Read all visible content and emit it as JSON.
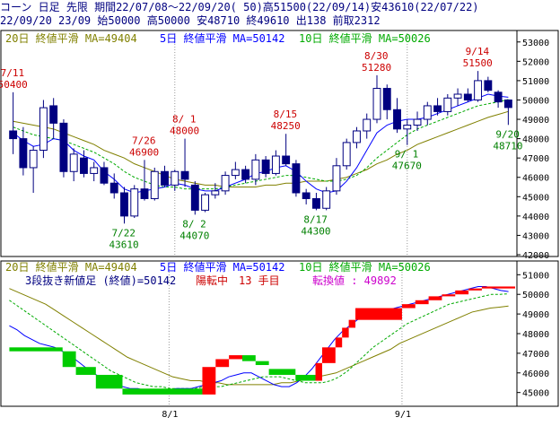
{
  "header": {
    "line1": "コーン 日足 先限 期間22/07/08～22/09/20( 50)高51500(22/09/14)安43610(22/07/22)",
    "line2": "22/09/20 23/09 始50000 高50000 安48710 終49610 出138 前取2312"
  },
  "colors": {
    "bg": "#ffffff",
    "header_text": "#000080",
    "ma20": "#808000",
    "ma5": "#0000ff",
    "ma10": "#00aa00",
    "candle": "#000080",
    "annot_high": "#cc0000",
    "annot_low": "#008000",
    "brick_up": "#ff0000",
    "brick_down": "#00cc00",
    "grid": "#999999"
  },
  "top_panel": {
    "legend": {
      "ma20": "20日 終値平滑 MA=49404",
      "ma5": "5日 終値平滑 MA=50142",
      "ma10": "10日 終値平滑 MA=50026"
    }
  },
  "bottom_panel": {
    "legend": {
      "ma20": "20日 終値平滑 MA=49404",
      "ma5": "5日 終値平滑 MA=50142",
      "ma10": "10日 終値平滑 MA=50026"
    },
    "status": {
      "part1": "3段抜き新値足 (終値)=50142",
      "part2": "陽転中　13 手目",
      "part3": "転換値 : 49892"
    }
  },
  "chart_data": [
    {
      "type": "candlestick",
      "ylim": [
        42000,
        53500
      ],
      "yticks": [
        42000,
        43000,
        44000,
        45000,
        46000,
        47000,
        48000,
        49000,
        50000,
        51000,
        52000,
        53000
      ],
      "xticks": [
        {
          "index": 16,
          "label": "8/1"
        },
        {
          "index": 39,
          "label": "9/1"
        }
      ],
      "candles": [
        {
          "o": 48400,
          "h": 50400,
          "l": 47200,
          "c": 48000
        },
        {
          "o": 48000,
          "h": 48600,
          "l": 46100,
          "c": 46500
        },
        {
          "o": 46500,
          "h": 47600,
          "l": 45200,
          "c": 47400
        },
        {
          "o": 47400,
          "h": 50000,
          "l": 47000,
          "c": 49600
        },
        {
          "o": 49700,
          "h": 50100,
          "l": 48000,
          "c": 48800
        },
        {
          "o": 48800,
          "h": 49000,
          "l": 46000,
          "c": 46300
        },
        {
          "o": 46300,
          "h": 47500,
          "l": 45800,
          "c": 47200
        },
        {
          "o": 47000,
          "h": 47400,
          "l": 46000,
          "c": 46200
        },
        {
          "o": 46200,
          "h": 46800,
          "l": 45800,
          "c": 46500
        },
        {
          "o": 46500,
          "h": 46800,
          "l": 45600,
          "c": 45700
        },
        {
          "o": 45700,
          "h": 46200,
          "l": 44900,
          "c": 45200
        },
        {
          "o": 45200,
          "h": 45500,
          "l": 43610,
          "c": 44000
        },
        {
          "o": 44000,
          "h": 45600,
          "l": 43900,
          "c": 45400
        },
        {
          "o": 45400,
          "h": 46900,
          "l": 44800,
          "c": 44900
        },
        {
          "o": 44900,
          "h": 46500,
          "l": 44800,
          "c": 46300
        },
        {
          "o": 46300,
          "h": 46600,
          "l": 45500,
          "c": 45600
        },
        {
          "o": 45600,
          "h": 46400,
          "l": 45300,
          "c": 46300
        },
        {
          "o": 46300,
          "h": 48000,
          "l": 45500,
          "c": 45900
        },
        {
          "o": 45600,
          "h": 45800,
          "l": 44070,
          "c": 44300
        },
        {
          "o": 44300,
          "h": 45200,
          "l": 44200,
          "c": 45100
        },
        {
          "o": 45100,
          "h": 45700,
          "l": 44900,
          "c": 45300
        },
        {
          "o": 45300,
          "h": 46300,
          "l": 45100,
          "c": 46100
        },
        {
          "o": 46100,
          "h": 46800,
          "l": 45900,
          "c": 46400
        },
        {
          "o": 46400,
          "h": 46600,
          "l": 45700,
          "c": 45900
        },
        {
          "o": 45900,
          "h": 47200,
          "l": 45600,
          "c": 46900
        },
        {
          "o": 46900,
          "h": 47100,
          "l": 46000,
          "c": 46200
        },
        {
          "o": 46200,
          "h": 47400,
          "l": 46100,
          "c": 47100
        },
        {
          "o": 47100,
          "h": 48250,
          "l": 46600,
          "c": 46700
        },
        {
          "o": 46700,
          "h": 46900,
          "l": 45000,
          "c": 45200
        },
        {
          "o": 45200,
          "h": 45400,
          "l": 44600,
          "c": 44900
        },
        {
          "o": 44900,
          "h": 45200,
          "l": 44300,
          "c": 44400
        },
        {
          "o": 44400,
          "h": 45500,
          "l": 44300,
          "c": 45300
        },
        {
          "o": 45300,
          "h": 47000,
          "l": 45100,
          "c": 46600
        },
        {
          "o": 46600,
          "h": 48000,
          "l": 46400,
          "c": 47800
        },
        {
          "o": 47800,
          "h": 48600,
          "l": 47500,
          "c": 48400
        },
        {
          "o": 48400,
          "h": 49300,
          "l": 48000,
          "c": 49000
        },
        {
          "o": 49000,
          "h": 51280,
          "l": 48800,
          "c": 50600
        },
        {
          "o": 50600,
          "h": 50800,
          "l": 49000,
          "c": 49500
        },
        {
          "o": 49500,
          "h": 50100,
          "l": 48300,
          "c": 48500
        },
        {
          "o": 48500,
          "h": 49000,
          "l": 47670,
          "c": 48700
        },
        {
          "o": 48700,
          "h": 49400,
          "l": 48400,
          "c": 49000
        },
        {
          "o": 49000,
          "h": 49900,
          "l": 48700,
          "c": 49700
        },
        {
          "o": 49700,
          "h": 50100,
          "l": 49200,
          "c": 49400
        },
        {
          "o": 49400,
          "h": 50300,
          "l": 49200,
          "c": 50100
        },
        {
          "o": 50100,
          "h": 50600,
          "l": 49700,
          "c": 50300
        },
        {
          "o": 50300,
          "h": 50600,
          "l": 49900,
          "c": 50000
        },
        {
          "o": 50000,
          "h": 51500,
          "l": 49900,
          "c": 51000
        },
        {
          "o": 51000,
          "h": 51200,
          "l": 50400,
          "c": 50500
        },
        {
          "o": 50400,
          "h": 50500,
          "l": 49600,
          "c": 49900
        },
        {
          "o": 50000,
          "h": 50000,
          "l": 48710,
          "c": 49610
        }
      ],
      "ma5": [
        48300,
        47900,
        47600,
        47700,
        48000,
        47900,
        47400,
        47100,
        46900,
        46300,
        45900,
        45400,
        45200,
        45300,
        45400,
        45500,
        45700,
        45600,
        45400,
        45300,
        45300,
        45500,
        45700,
        45900,
        46200,
        46300,
        46500,
        46600,
        46300,
        45800,
        45400,
        45200,
        45300,
        45800,
        46500,
        47400,
        48300,
        48700,
        48900,
        49000,
        49000,
        49100,
        49300,
        49500,
        49700,
        49900,
        50100,
        50300,
        50200,
        50142
      ],
      "ma10": [
        48600,
        48400,
        48200,
        48100,
        48000,
        47900,
        47700,
        47500,
        47300,
        47000,
        46700,
        46300,
        46000,
        45800,
        45600,
        45500,
        45500,
        45400,
        45400,
        45400,
        45400,
        45500,
        45600,
        45700,
        45800,
        45900,
        46000,
        46100,
        46100,
        46000,
        45900,
        45800,
        45800,
        45900,
        46100,
        46500,
        47000,
        47400,
        47800,
        48200,
        48500,
        48700,
        48900,
        49100,
        49300,
        49500,
        49700,
        49800,
        49900,
        50026
      ],
      "ma20": [
        48900,
        48800,
        48700,
        48600,
        48500,
        48300,
        48100,
        47900,
        47700,
        47400,
        47200,
        47000,
        46700,
        46500,
        46300,
        46100,
        45900,
        45800,
        45700,
        45600,
        45600,
        45500,
        45500,
        45500,
        45500,
        45600,
        45600,
        45700,
        45700,
        45800,
        45800,
        45800,
        45900,
        46000,
        46200,
        46400,
        46700,
        46900,
        47200,
        47400,
        47700,
        47900,
        48100,
        48300,
        48500,
        48700,
        48900,
        49100,
        49250,
        49404
      ],
      "annotations": [
        {
          "index": 0,
          "label": "7/11",
          "value": "50400",
          "kind": "high"
        },
        {
          "index": 11,
          "label": "7/22",
          "value": "43610",
          "kind": "low"
        },
        {
          "index": 13,
          "label": "7/26",
          "value": "46900",
          "kind": "high"
        },
        {
          "index": 17,
          "label": "8/ 1",
          "value": "48000",
          "kind": "high"
        },
        {
          "index": 18,
          "label": "8/ 2",
          "value": "44070",
          "kind": "low"
        },
        {
          "index": 27,
          "label": "8/15",
          "value": "48250",
          "kind": "high"
        },
        {
          "index": 30,
          "label": "8/17",
          "value": "44300",
          "kind": "low"
        },
        {
          "index": 36,
          "label": "8/30",
          "value": "51280",
          "kind": "high"
        },
        {
          "index": 39,
          "label": "9/ 1",
          "value": "47670",
          "kind": "low"
        },
        {
          "index": 46,
          "label": "9/14",
          "value": "51500",
          "kind": "high"
        },
        {
          "index": 49,
          "label": "9/20",
          "value": "48710",
          "kind": "low"
        }
      ]
    },
    {
      "type": "three-line-break",
      "ylim": [
        44300,
        51700
      ],
      "yticks": [
        45000,
        46000,
        47000,
        48000,
        49000,
        50000,
        51000
      ],
      "xticks": [
        {
          "index": 16,
          "label": "8/1"
        },
        {
          "index": 39,
          "label": "9/1"
        }
      ],
      "bricks": [
        {
          "from": 1,
          "to": 9,
          "low": 47100,
          "high": 47300,
          "dir": "down"
        },
        {
          "from": 9,
          "to": 11,
          "low": 46300,
          "high": 47100,
          "dir": "down"
        },
        {
          "from": 11,
          "to": 14,
          "low": 45900,
          "high": 46300,
          "dir": "down"
        },
        {
          "from": 14,
          "to": 18,
          "low": 45200,
          "high": 45900,
          "dir": "down"
        },
        {
          "from": 18,
          "to": 30,
          "low": 44900,
          "high": 45200,
          "dir": "down"
        },
        {
          "from": 30,
          "to": 32,
          "low": 44900,
          "high": 46300,
          "dir": "up"
        },
        {
          "from": 32,
          "to": 34,
          "low": 46300,
          "high": 46700,
          "dir": "up"
        },
        {
          "from": 34,
          "to": 36,
          "low": 46700,
          "high": 46900,
          "dir": "up"
        },
        {
          "from": 36,
          "to": 38,
          "low": 46600,
          "high": 46900,
          "dir": "down"
        },
        {
          "from": 38,
          "to": 40,
          "low": 46400,
          "high": 46600,
          "dir": "down"
        },
        {
          "from": 40,
          "to": 44,
          "low": 45900,
          "high": 46200,
          "dir": "down"
        },
        {
          "from": 44,
          "to": 47,
          "low": 45600,
          "high": 45900,
          "dir": "down"
        },
        {
          "from": 47,
          "to": 48,
          "low": 45600,
          "high": 46500,
          "dir": "up"
        },
        {
          "from": 48,
          "to": 50,
          "low": 46500,
          "high": 47300,
          "dir": "up"
        },
        {
          "from": 50,
          "to": 51,
          "low": 47300,
          "high": 47800,
          "dir": "up"
        },
        {
          "from": 51,
          "to": 52,
          "low": 47800,
          "high": 48300,
          "dir": "up"
        },
        {
          "from": 52,
          "to": 53,
          "low": 48300,
          "high": 48700,
          "dir": "up"
        },
        {
          "from": 53,
          "to": 60,
          "low": 48700,
          "high": 49300,
          "dir": "up"
        },
        {
          "from": 60,
          "to": 62,
          "low": 49300,
          "high": 49500,
          "dir": "up"
        },
        {
          "from": 62,
          "to": 64,
          "low": 49500,
          "high": 49700,
          "dir": "up"
        },
        {
          "from": 64,
          "to": 66,
          "low": 49700,
          "high": 49900,
          "dir": "up"
        },
        {
          "from": 66,
          "to": 68,
          "low": 49900,
          "high": 50000,
          "dir": "up"
        },
        {
          "from": 68,
          "to": 70,
          "low": 50000,
          "high": 50200,
          "dir": "up"
        },
        {
          "from": 70,
          "to": 72,
          "low": 50200,
          "high": 50300,
          "dir": "up"
        },
        {
          "from": 72,
          "to": 77,
          "low": 50300,
          "high": 50400,
          "dir": "up"
        }
      ],
      "brick_slots": 77,
      "xticks_slots": [
        {
          "slot": 25,
          "label": "8/1"
        },
        {
          "slot": 60,
          "label": "9/1"
        }
      ],
      "ma5": [
        48400,
        48200,
        47900,
        47700,
        47500,
        47400,
        47300,
        47100,
        46900,
        46600,
        46300,
        46000,
        45800,
        45600,
        45400,
        45300,
        45200,
        45200,
        45100,
        45100,
        45100,
        45100,
        45200,
        45200,
        45200,
        45300,
        45400,
        45500,
        45600,
        45800,
        45900,
        46000,
        46000,
        45800,
        45600,
        45400,
        45300,
        45300,
        45500,
        45800,
        46200,
        46700,
        47200,
        47700,
        48100,
        48400,
        48700,
        48900,
        49000,
        49100,
        49200,
        49300,
        49400,
        49500,
        49600,
        49700,
        49800,
        49900,
        50000,
        50100,
        50200,
        50300,
        50400,
        50400,
        50300,
        50200,
        50142
      ],
      "ma10": [
        49700,
        49400,
        49100,
        48800,
        48500,
        48200,
        47900,
        47600,
        47300,
        47000,
        46700,
        46400,
        46100,
        45900,
        45700,
        45500,
        45400,
        45300,
        45300,
        45200,
        45200,
        45200,
        45200,
        45300,
        45300,
        45300,
        45400,
        45500,
        45600,
        45700,
        45800,
        45800,
        45800,
        45700,
        45600,
        45500,
        45500,
        45500,
        45600,
        45800,
        46100,
        46500,
        46900,
        47300,
        47600,
        47900,
        48200,
        48500,
        48700,
        48900,
        49100,
        49300,
        49500,
        49600,
        49700,
        49800,
        49900,
        50000,
        50000,
        50026
      ],
      "ma20": [
        50300,
        50100,
        49900,
        49700,
        49500,
        49200,
        48900,
        48600,
        48300,
        48000,
        47700,
        47400,
        47100,
        46800,
        46600,
        46400,
        46200,
        46000,
        45800,
        45700,
        45600,
        45600,
        45500,
        45500,
        45400,
        45400,
        45400,
        45400,
        45400,
        45400,
        45500,
        45500,
        45600,
        45700,
        45800,
        45900,
        46000,
        46200,
        46400,
        46600,
        46800,
        47000,
        47200,
        47500,
        47700,
        47900,
        48100,
        48300,
        48500,
        48700,
        48900,
        49100,
        49200,
        49300,
        49350,
        49404
      ]
    }
  ]
}
